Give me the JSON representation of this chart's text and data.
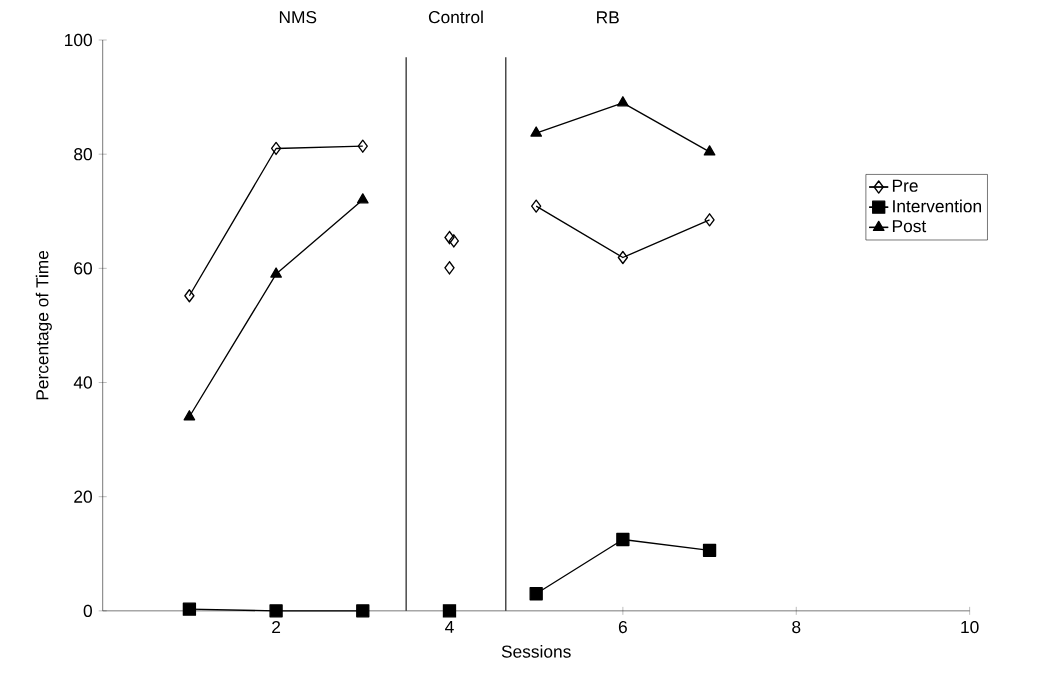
{
  "chart_data": {
    "type": "line",
    "xlabel": "Sessions",
    "ylabel": "Percentage of Time",
    "xlim": [
      0,
      10
    ],
    "xticks": [
      2,
      4,
      6,
      8,
      10
    ],
    "ylim": [
      0,
      100
    ],
    "yticks": [
      0,
      20,
      40,
      60,
      80,
      100
    ],
    "grid": false,
    "legend": "right",
    "series": [
      {
        "name": "Pre",
        "color": "#000000",
        "marker": "diamond",
        "x": [
          1,
          2,
          3,
          4,
          5,
          6,
          7
        ],
        "values": [
          55.2,
          81.0,
          81.4,
          null,
          70.9,
          61.9,
          68.5
        ]
      },
      {
        "name": "Intervention",
        "color": "#000000",
        "marker": "square",
        "x": [
          1,
          2,
          3,
          4,
          5,
          6,
          7
        ],
        "values": [
          0.3,
          0,
          0,
          null,
          3.0,
          12.5,
          10.6
        ]
      },
      {
        "name": "Post",
        "color": "#000000",
        "marker": "triangle",
        "x": [
          1,
          2,
          3,
          4,
          5,
          6,
          7
        ],
        "values": [
          34.0,
          59.0,
          72.0,
          null,
          83.7,
          89.0,
          80.4
        ]
      },
      {
        "type": "scatter",
        "color": "#000000",
        "marker": "diamond",
        "x": [
          4,
          4.05,
          4
        ],
        "values": [
          65.4,
          64.8,
          60.1
        ]
      },
      {
        "type": "scatter",
        "color": "#000000",
        "marker": "square",
        "x": [
          4
        ],
        "values": [
          0
        ]
      }
    ],
    "ref_lines": [
      {
        "axis": "x",
        "value": 3.5,
        "color": "#000000"
      },
      {
        "axis": "x",
        "value": 4.65,
        "color": "#000000"
      }
    ],
    "annotations": [
      "NMS",
      "Control",
      "RB"
    ]
  }
}
